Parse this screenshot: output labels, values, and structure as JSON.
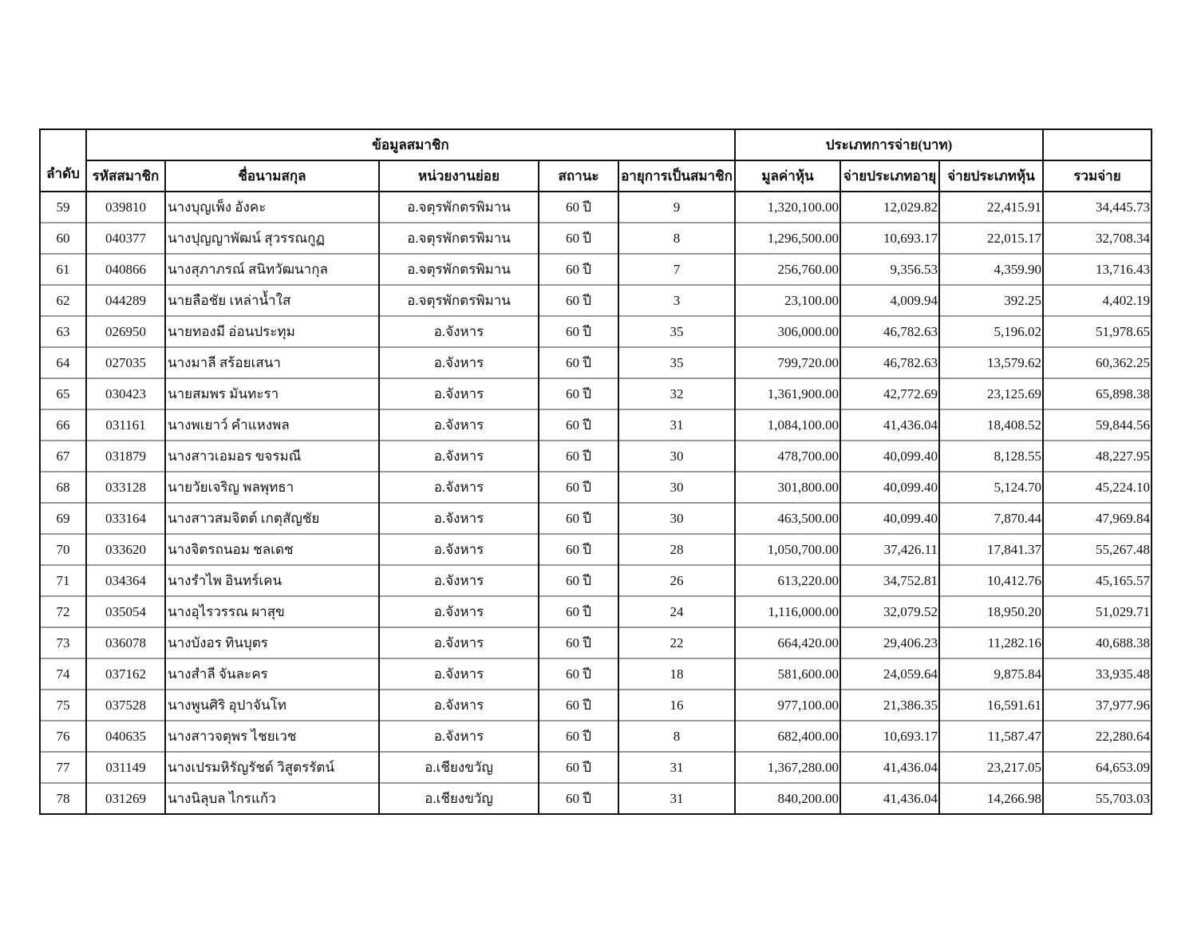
{
  "header": {
    "no": "ลำดับ",
    "group_member": "ข้อมูลสมาชิก",
    "group_payment": "ประเภทการจ่าย(บาท)",
    "columns": [
      "รหัสสมาชิก",
      "ชื่อนามสกุล",
      "หน่วยงานย่อย",
      "สถานะ",
      "อายุการเป็นสมาชิก",
      "มูลค่าหุ้น",
      "จ่ายประเภทอายุ",
      "จ่ายประเภทหุ้น",
      "รวมจ่าย"
    ]
  },
  "rows": [
    [
      "59",
      "039810",
      "นางบุญเพ็ง อังคะ",
      "อ.จตุรพักตรพิมาน",
      "60 ปี",
      "9",
      "1,320,100.00",
      "12,029.82",
      "22,415.91",
      "34,445.73"
    ],
    [
      "60",
      "040377",
      "นางปุญญาพัฒน์ สุวรรณกูฏ",
      "อ.จตุรพักตรพิมาน",
      "60 ปี",
      "8",
      "1,296,500.00",
      "10,693.17",
      "22,015.17",
      "32,708.34"
    ],
    [
      "61",
      "040866",
      "นางสุภาภรณ์ สนิทวัฒนากุล",
      "อ.จตุรพักตรพิมาน",
      "60 ปี",
      "7",
      "256,760.00",
      "9,356.53",
      "4,359.90",
      "13,716.43"
    ],
    [
      "62",
      "044289",
      "นายลือชัย เหล่าน้ำใส",
      "อ.จตุรพักตรพิมาน",
      "60 ปี",
      "3",
      "23,100.00",
      "4,009.94",
      "392.25",
      "4,402.19"
    ],
    [
      "63",
      "026950",
      "นายทองมี อ่อนประทุม",
      "อ.จังหาร",
      "60 ปี",
      "35",
      "306,000.00",
      "46,782.63",
      "5,196.02",
      "51,978.65"
    ],
    [
      "64",
      "027035",
      "นางมาลี สร้อยเสนา",
      "อ.จังหาร",
      "60 ปี",
      "35",
      "799,720.00",
      "46,782.63",
      "13,579.62",
      "60,362.25"
    ],
    [
      "65",
      "030423",
      "นายสมพร มันทะรา",
      "อ.จังหาร",
      "60 ปี",
      "32",
      "1,361,900.00",
      "42,772.69",
      "23,125.69",
      "65,898.38"
    ],
    [
      "66",
      "031161",
      "นางพเยาว์ คำแหงพล",
      "อ.จังหาร",
      "60 ปี",
      "31",
      "1,084,100.00",
      "41,436.04",
      "18,408.52",
      "59,844.56"
    ],
    [
      "67",
      "031879",
      "นางสาวเอมอร ขจรมณี",
      "อ.จังหาร",
      "60 ปี",
      "30",
      "478,700.00",
      "40,099.40",
      "8,128.55",
      "48,227.95"
    ],
    [
      "68",
      "033128",
      "นายวัยเจริญ พลพุทธา",
      "อ.จังหาร",
      "60 ปี",
      "30",
      "301,800.00",
      "40,099.40",
      "5,124.70",
      "45,224.10"
    ],
    [
      "69",
      "033164",
      "นางสาวสมจิตต์ เกตุสัญชัย",
      "อ.จังหาร",
      "60 ปี",
      "30",
      "463,500.00",
      "40,099.40",
      "7,870.44",
      "47,969.84"
    ],
    [
      "70",
      "033620",
      "นางจิตรถนอม ชลเดช",
      "อ.จังหาร",
      "60 ปี",
      "28",
      "1,050,700.00",
      "37,426.11",
      "17,841.37",
      "55,267.48"
    ],
    [
      "71",
      "034364",
      "นางรำไพ อินทร์เคน",
      "อ.จังหาร",
      "60 ปี",
      "26",
      "613,220.00",
      "34,752.81",
      "10,412.76",
      "45,165.57"
    ],
    [
      "72",
      "035054",
      "นางอุไรวรรณ ผาสุข",
      "อ.จังหาร",
      "60 ปี",
      "24",
      "1,116,000.00",
      "32,079.52",
      "18,950.20",
      "51,029.71"
    ],
    [
      "73",
      "036078",
      "นางบังอร ทินบุตร",
      "อ.จังหาร",
      "60 ปี",
      "22",
      "664,420.00",
      "29,406.23",
      "11,282.16",
      "40,688.38"
    ],
    [
      "74",
      "037162",
      "นางสำลี จันละคร",
      "อ.จังหาร",
      "60 ปี",
      "18",
      "581,600.00",
      "24,059.64",
      "9,875.84",
      "33,935.48"
    ],
    [
      "75",
      "037528",
      "นางพูนศิริ อุปาจันโท",
      "อ.จังหาร",
      "60 ปี",
      "16",
      "977,100.00",
      "21,386.35",
      "16,591.61",
      "37,977.96"
    ],
    [
      "76",
      "040635",
      "นางสาวจตุพร ไชยเวช",
      "อ.จังหาร",
      "60 ปี",
      "8",
      "682,400.00",
      "10,693.17",
      "11,587.47",
      "22,280.64"
    ],
    [
      "77",
      "031149",
      "นางเปรมหิรัญรัชด์ วิสูตรรัตน์",
      "อ.เชียงขวัญ",
      "60 ปี",
      "31",
      "1,367,280.00",
      "41,436.04",
      "23,217.05",
      "64,653.09"
    ],
    [
      "78",
      "031269",
      "นางนิลุบล ไกรแก้ว",
      "อ.เชียงขวัญ",
      "60 ปี",
      "31",
      "840,200.00",
      "41,436.04",
      "14,266.98",
      "55,703.03"
    ]
  ]
}
